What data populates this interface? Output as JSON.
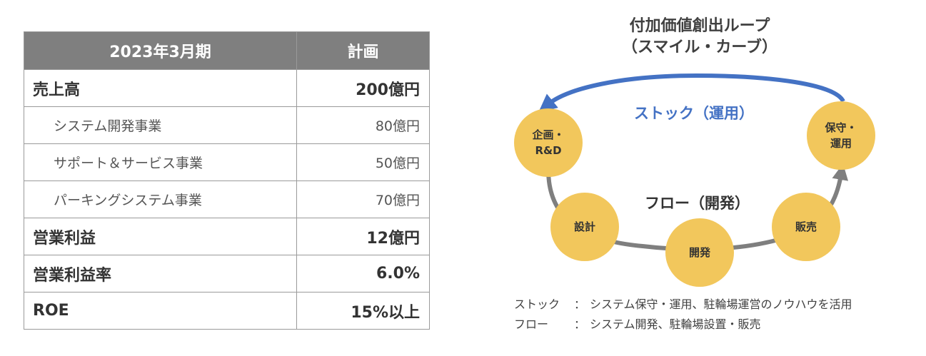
{
  "plan_table": {
    "header": {
      "period": "2023年3月期",
      "plan": "計画"
    },
    "rows": [
      {
        "label": "売上高",
        "value": "200億円",
        "level": "main"
      },
      {
        "label": "システム開発事業",
        "value": "80億円",
        "level": "sub"
      },
      {
        "label": "サポート＆サービス事業",
        "value": "50億円",
        "level": "sub"
      },
      {
        "label": "パーキングシステム事業",
        "value": "70億円",
        "level": "sub"
      },
      {
        "label": "営業利益",
        "value": "12億円",
        "level": "main"
      },
      {
        "label": "営業利益率",
        "value": "6.0%",
        "level": "main"
      },
      {
        "label": "ROE",
        "value": "15%以上",
        "level": "main"
      }
    ]
  },
  "diagram": {
    "title_line1": "付加価値創出ループ",
    "title_line2": "（スマイル・カーブ）",
    "stock_label": "ストック（運用）",
    "flow_label": "フロー（開発）",
    "nodes": {
      "planning_rd": "企画・\nR&D",
      "maintenance": "保守・\n運用",
      "design": "設計",
      "development": "開発",
      "sales": "販売"
    },
    "colors": {
      "stock_arrow": "#4472c4",
      "flow_arrow": "#7f7f7f",
      "node_fill": "#f2c75c"
    }
  },
  "legend": {
    "stock_term": "ストック",
    "stock_desc": "システム保守・運用、駐輪場運営のノウハウを活用",
    "flow_term": "フロー",
    "flow_desc": "システム開発、駐輪場設置・販売",
    "separator": "："
  }
}
